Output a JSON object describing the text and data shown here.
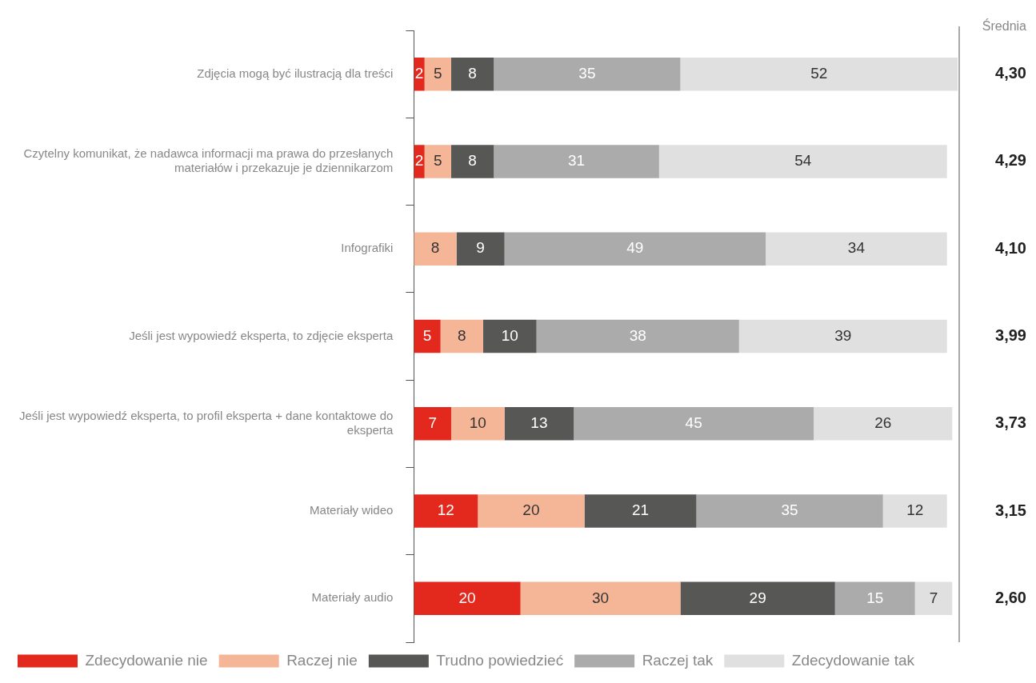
{
  "chart_data": {
    "type": "bar",
    "orientation": "horizontal",
    "stacked": true,
    "data_labels": true,
    "legend": "bottom",
    "grid": false,
    "categories": [
      "Zdjęcia mogą być ilustracją dla treści",
      "Czytelny komunikat, że nadawca informacji ma prawa do przesłanych materiałów i przekazuje je dziennikarzom",
      "Infografiki",
      "Jeśli jest wypowiedź eksperta, to zdjęcie eksperta",
      "Jeśli jest wypowiedź eksperta, to profil eksperta + dane kontaktowe do eksperta",
      "Materiały wideo",
      "Materiały audio"
    ],
    "series": [
      {
        "name": "Zdecydowanie nie",
        "color": "#e3291d",
        "values": [
          2,
          2,
          null,
          5,
          7,
          12,
          20
        ]
      },
      {
        "name": "Raczej nie",
        "color": "#f5b597",
        "values": [
          5,
          5,
          8,
          8,
          10,
          20,
          30
        ]
      },
      {
        "name": "Trudno powiedzieć",
        "color": "#575756",
        "values": [
          8,
          8,
          9,
          10,
          13,
          21,
          29
        ]
      },
      {
        "name": "Raczej tak",
        "color": "#ababab",
        "values": [
          35,
          31,
          49,
          38,
          45,
          35,
          15
        ]
      },
      {
        "name": "Zdecydowanie tak",
        "color": "#e0e0e0",
        "values": [
          52,
          54,
          34,
          39,
          26,
          12,
          7
        ]
      }
    ],
    "annotations": [
      "Średnia",
      "4,30",
      "4,29",
      "4,10",
      "3,99",
      "3,73",
      "3,15",
      "2,60"
    ]
  }
}
